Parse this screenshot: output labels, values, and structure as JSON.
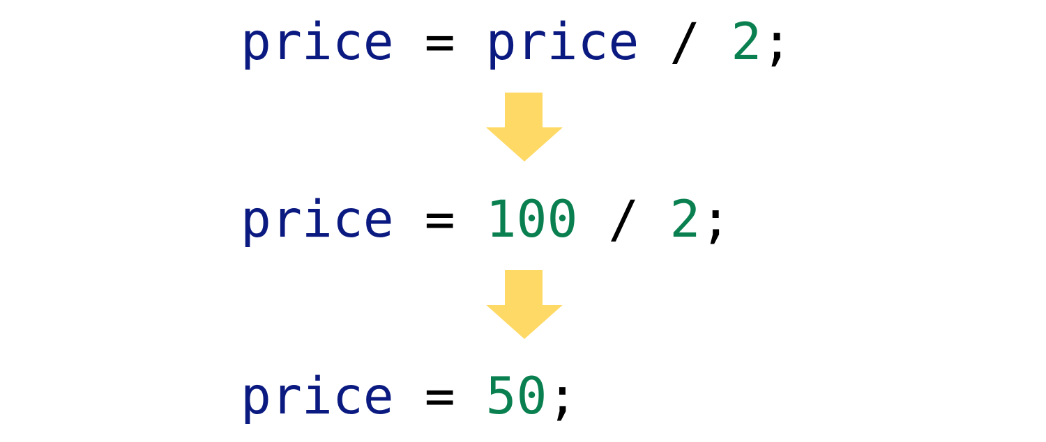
{
  "lines": [
    {
      "tokens": [
        {
          "text": "price",
          "kind": "identifier"
        },
        {
          "text": " = ",
          "kind": "operator"
        },
        {
          "text": "price",
          "kind": "identifier"
        },
        {
          "text": " / ",
          "kind": "operator"
        },
        {
          "text": "2",
          "kind": "number"
        },
        {
          "text": ";",
          "kind": "operator"
        }
      ]
    },
    {
      "tokens": [
        {
          "text": "price",
          "kind": "identifier"
        },
        {
          "text": " = ",
          "kind": "operator"
        },
        {
          "text": "100",
          "kind": "number"
        },
        {
          "text": " / ",
          "kind": "operator"
        },
        {
          "text": "2",
          "kind": "number"
        },
        {
          "text": ";",
          "kind": "operator"
        }
      ]
    },
    {
      "tokens": [
        {
          "text": "price",
          "kind": "identifier"
        },
        {
          "text": " = ",
          "kind": "operator"
        },
        {
          "text": "50",
          "kind": "number"
        },
        {
          "text": ";",
          "kind": "operator"
        }
      ]
    }
  ],
  "colors": {
    "identifier": "#0b1a80",
    "number": "#0a8050",
    "operator": "#000000",
    "arrow": "#ffd966"
  },
  "arrows": [
    {
      "icon": "down-arrow-icon"
    },
    {
      "icon": "down-arrow-icon"
    }
  ]
}
